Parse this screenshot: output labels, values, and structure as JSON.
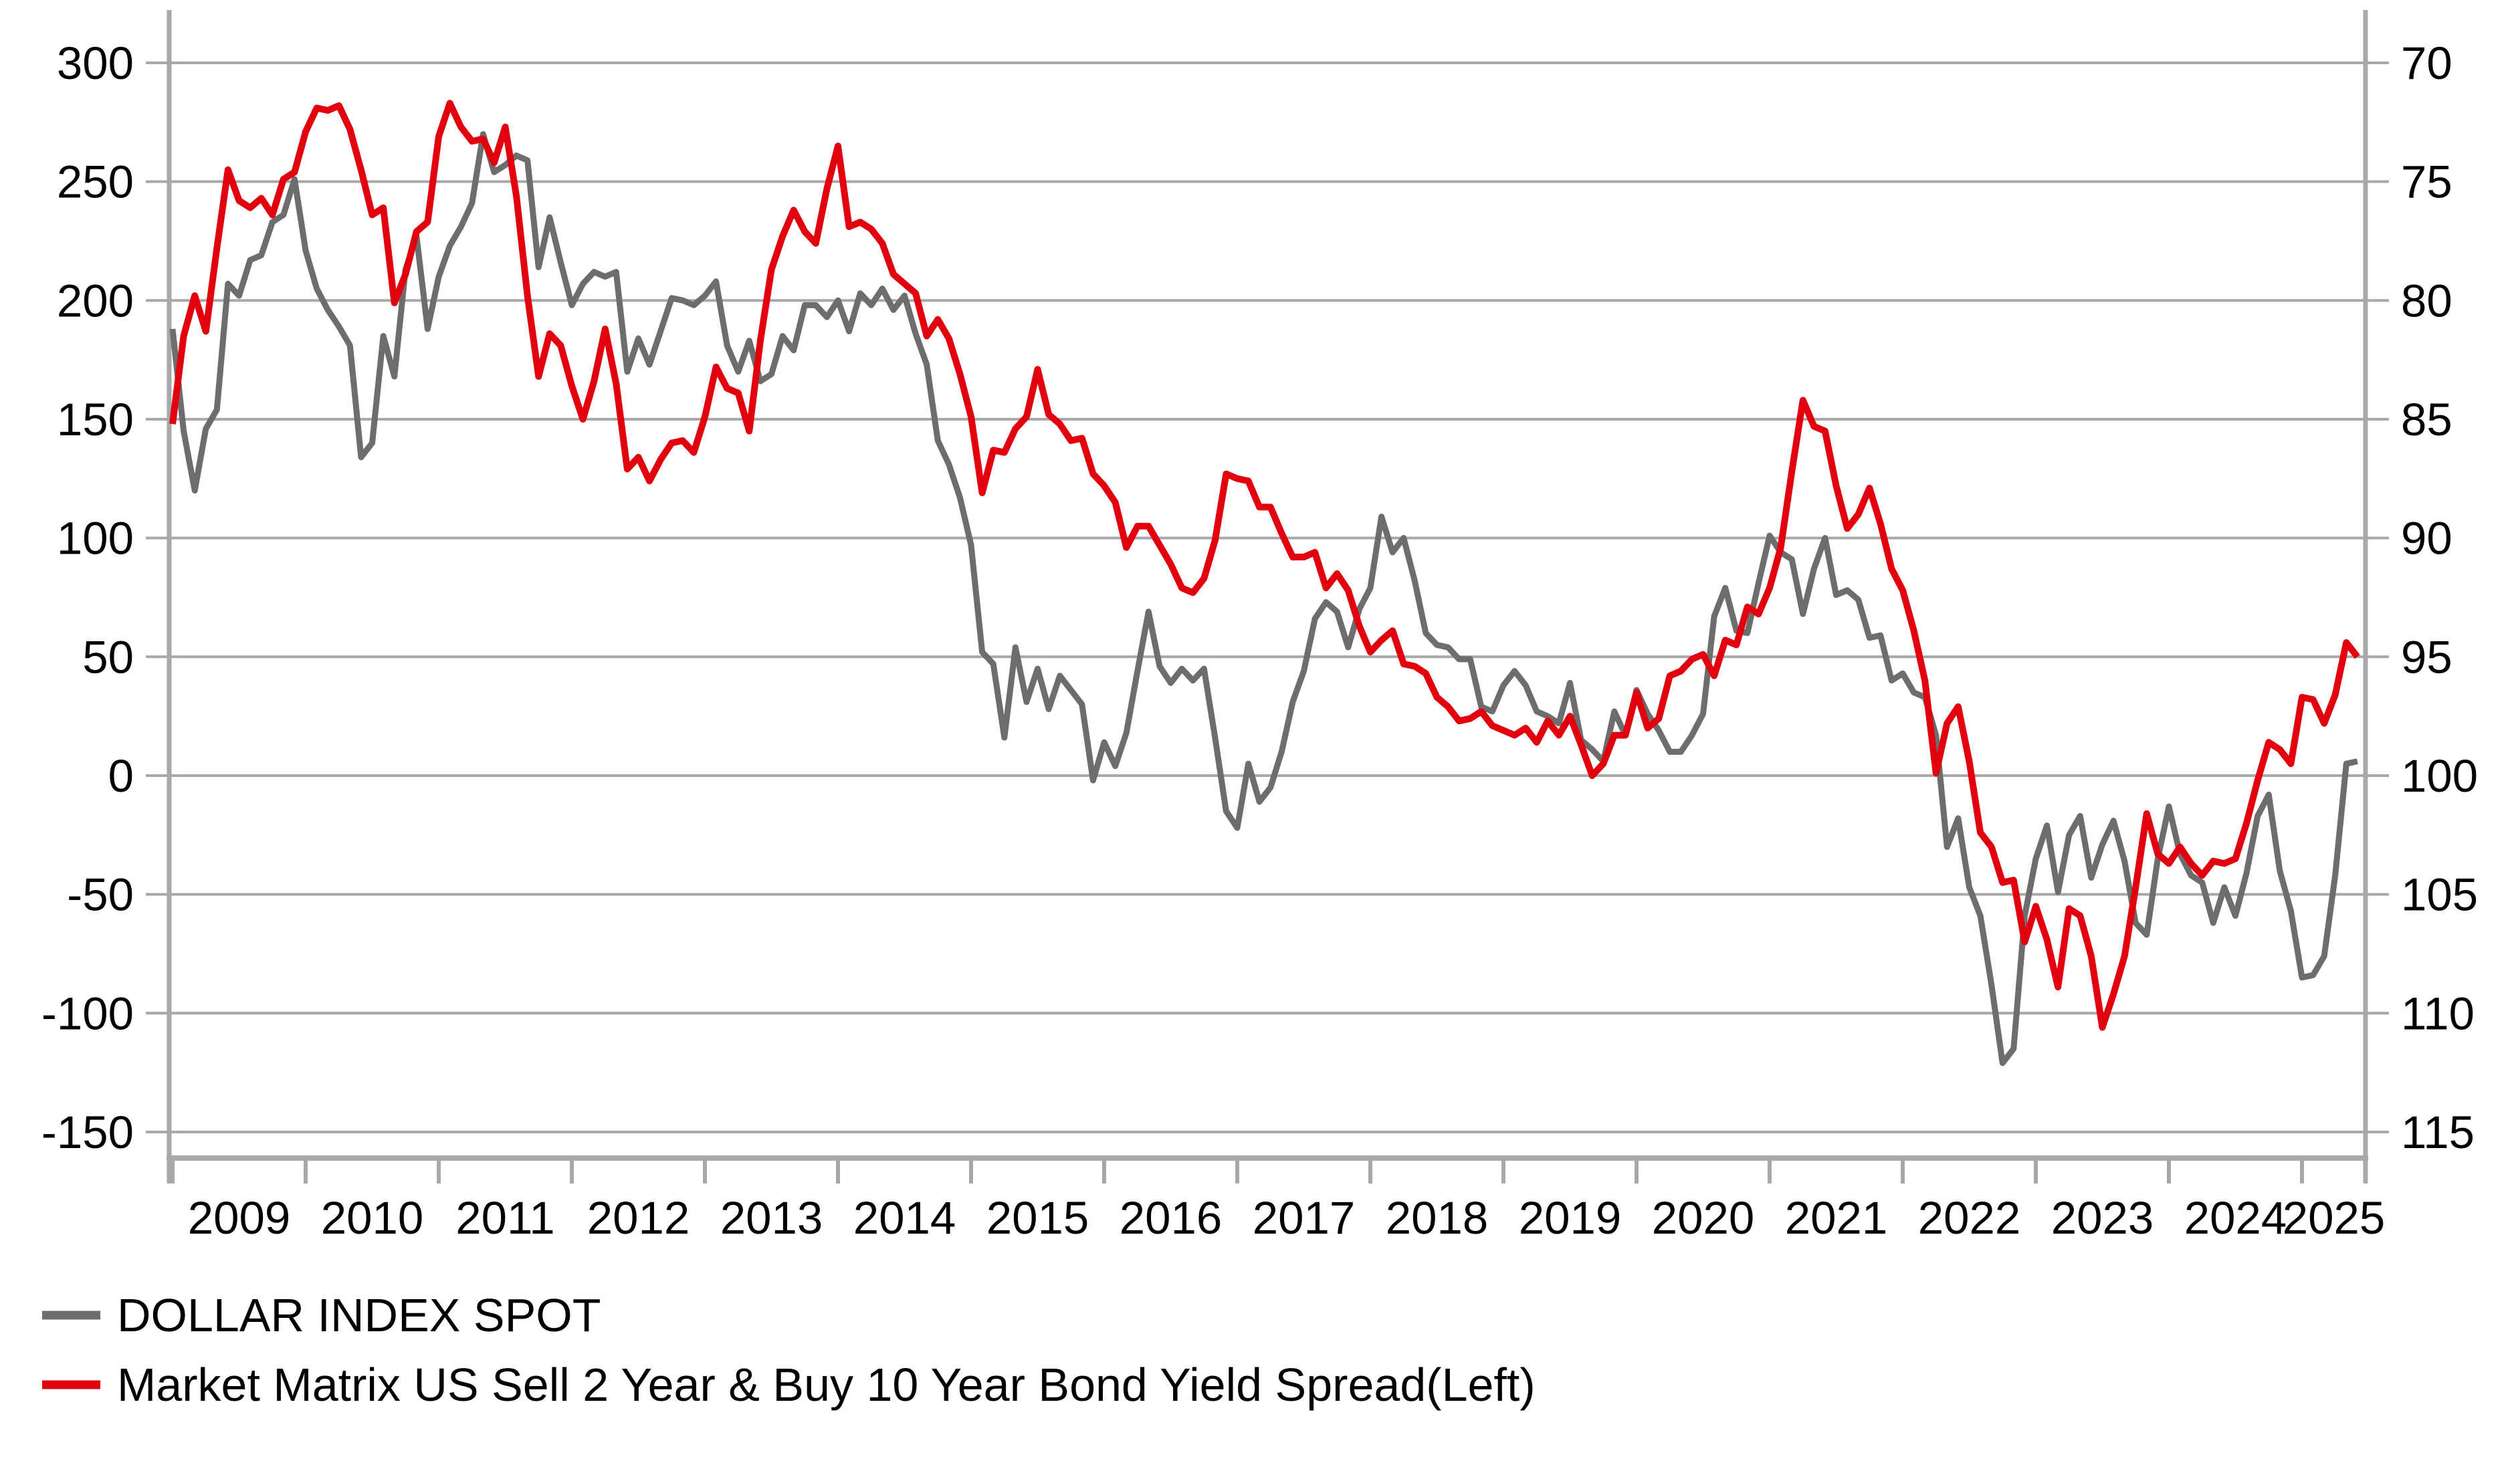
{
  "chart_data": {
    "type": "line",
    "title": "",
    "x_axis": {
      "unit": "year",
      "tick_labels": [
        "2009",
        "2010",
        "2011",
        "2012",
        "2013",
        "2014",
        "2015",
        "2016",
        "2017",
        "2018",
        "2019",
        "2020",
        "2021",
        "2022",
        "2023",
        "2024",
        "2025"
      ],
      "data_start": "2008-12",
      "data_end": "2025-05",
      "frequency": "monthly"
    },
    "left_axis": {
      "tick_labels": [
        "300",
        "250",
        "200",
        "150",
        "100",
        "50",
        "0",
        "-50",
        "-100",
        "-150"
      ],
      "tick_values": [
        300,
        250,
        200,
        150,
        100,
        50,
        0,
        -50,
        -100,
        -150
      ],
      "range_top": 322,
      "range_bottom": -161
    },
    "right_axis": {
      "tick_labels": [
        "70",
        "75",
        "80",
        "85",
        "90",
        "95",
        "100",
        "105",
        "110",
        "115"
      ],
      "tick_values": [
        70,
        75,
        80,
        85,
        90,
        95,
        100,
        105,
        110,
        115
      ],
      "inverted": true,
      "mapping_note": "right value r plots at left-axis position (100-r)*10"
    },
    "grid": "horizontal-only",
    "legend_position": "bottom-left",
    "series": [
      {
        "name": "DOLLAR INDEX SPOT",
        "axis": "right",
        "color": "#6d6d6d",
        "values": [
          81.2,
          85.5,
          88.0,
          85.4,
          84.6,
          79.3,
          79.8,
          78.3,
          78.1,
          76.7,
          76.4,
          74.9,
          77.9,
          79.5,
          80.4,
          81.1,
          81.9,
          86.6,
          86.0,
          81.5,
          83.2,
          78.7,
          77.3,
          81.2,
          79.0,
          77.7,
          76.9,
          75.9,
          73.0,
          74.6,
          74.3,
          73.9,
          74.1,
          78.6,
          76.5,
          78.4,
          80.2,
          79.3,
          78.8,
          79.0,
          78.8,
          83.0,
          81.6,
          82.7,
          81.3,
          79.9,
          80.0,
          80.2,
          79.8,
          79.2,
          81.9,
          83.0,
          81.7,
          83.4,
          83.1,
          81.5,
          82.1,
          80.2,
          80.2,
          80.7,
          80.0,
          81.3,
          79.7,
          80.2,
          79.5,
          80.4,
          79.8,
          81.4,
          82.7,
          85.9,
          86.9,
          88.3,
          90.3,
          94.8,
          95.3,
          98.4,
          94.6,
          96.9,
          95.5,
          97.2,
          95.8,
          96.4,
          97.0,
          100.2,
          98.6,
          99.6,
          98.2,
          95.6,
          93.1,
          95.4,
          96.1,
          95.5,
          96.0,
          95.5,
          98.4,
          101.5,
          102.2,
          99.5,
          101.1,
          100.5,
          99.0,
          96.9,
          95.6,
          93.4,
          92.7,
          93.1,
          94.6,
          93.0,
          92.1,
          89.1,
          90.6,
          90.0,
          91.8,
          94.0,
          94.5,
          94.6,
          95.1,
          95.1,
          97.1,
          97.3,
          96.2,
          95.6,
          96.2,
          97.3,
          97.5,
          97.8,
          96.1,
          98.5,
          98.9,
          99.4,
          97.3,
          98.3,
          96.4,
          97.4,
          98.1,
          99.0,
          99.0,
          98.3,
          97.4,
          93.3,
          92.1,
          93.9,
          94.0,
          91.9,
          89.9,
          90.6,
          90.9,
          93.2,
          91.3,
          90.0,
          92.4,
          92.2,
          92.6,
          94.2,
          94.1,
          96.0,
          95.7,
          96.5,
          96.7,
          98.3,
          103.0,
          101.8,
          104.7,
          105.9,
          108.8,
          112.1,
          111.5,
          105.9,
          103.5,
          102.1,
          104.9,
          102.5,
          101.7,
          104.3,
          102.9,
          101.9,
          103.6,
          106.2,
          106.7,
          103.5,
          101.3,
          103.3,
          104.2,
          104.5,
          106.2,
          104.7,
          105.9,
          104.1,
          101.7,
          100.8,
          104.0,
          105.7,
          108.5,
          108.4,
          107.6,
          104.2,
          99.5,
          99.4
        ]
      },
      {
        "name": "Market Matrix US Sell 2 Year & Buy 10 Year Bond Yield Spread(Left)",
        "axis": "left",
        "color": "#e2000f",
        "values": [
          148,
          185,
          202,
          187,
          222,
          255,
          242,
          239,
          243,
          236,
          251,
          254,
          271,
          281,
          280,
          282,
          272,
          255,
          236,
          239,
          199,
          211,
          229,
          233,
          269,
          283,
          273,
          267,
          268,
          258,
          273,
          244,
          202,
          168,
          186,
          181,
          164,
          150,
          166,
          188,
          165,
          129,
          134,
          124,
          133,
          140,
          141,
          136,
          151,
          172,
          163,
          161,
          145,
          183,
          213,
          227,
          238,
          229,
          224,
          247,
          265,
          231,
          233,
          230,
          224,
          211,
          207,
          203,
          185,
          192,
          184,
          169,
          151,
          119,
          137,
          136,
          146,
          151,
          171,
          152,
          148,
          141,
          142,
          127,
          122,
          115,
          96,
          105,
          105,
          97,
          89,
          79,
          77,
          83,
          99,
          127,
          125,
          124,
          113,
          113,
          102,
          92,
          92,
          94,
          79,
          85,
          78,
          63,
          52,
          57,
          61,
          47,
          46,
          43,
          33,
          29,
          23,
          24,
          27,
          21,
          19,
          17,
          20,
          14,
          23,
          17,
          25,
          13,
          0,
          5,
          17,
          17,
          35,
          20,
          24,
          42,
          44,
          49,
          51,
          42,
          57,
          55,
          71,
          68,
          79,
          96,
          128,
          158,
          147,
          145,
          122,
          104,
          110,
          121,
          106,
          87,
          78,
          61,
          40,
          1,
          22,
          29,
          6,
          -24,
          -30,
          -45,
          -44,
          -70,
          -55,
          -69,
          -89,
          -56,
          -59,
          -76,
          -106,
          -92,
          -76,
          -47,
          -16,
          -33,
          -37,
          -30,
          -37,
          -42,
          -36,
          -37,
          -35,
          -20,
          -2,
          14,
          11,
          5,
          33,
          32,
          22,
          34,
          56,
          50
        ]
      }
    ]
  },
  "legend": {
    "items": [
      {
        "label": "DOLLAR INDEX SPOT",
        "color": "#6d6d6d"
      },
      {
        "label": "Market Matrix US Sell 2 Year & Buy 10 Year Bond Yield Spread(Left)",
        "color": "#e2000f"
      }
    ]
  },
  "colors": {
    "grid": "#a8a8a8",
    "axis": "#a8a8a8",
    "text": "#000000",
    "background": "#ffffff",
    "spread_line": "#e2000f",
    "dxy_line": "#6d6d6d"
  }
}
